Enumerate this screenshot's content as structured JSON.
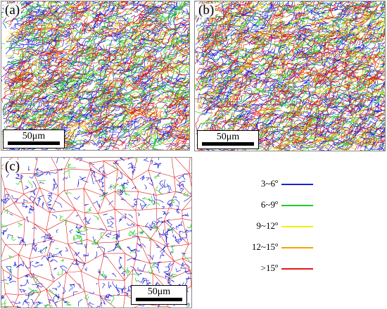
{
  "panels": [
    {
      "id": "a",
      "label": "(a)",
      "scale_text": "50μm"
    },
    {
      "id": "b",
      "label": "(b)",
      "scale_text": "50μm"
    },
    {
      "id": "c",
      "label": "(c)",
      "scale_text": "50μm"
    }
  ],
  "legend": {
    "items": [
      {
        "label": "3~6º",
        "color": "#1f1fd6"
      },
      {
        "label": "6~9º",
        "color": "#22cc22"
      },
      {
        "label": "9~12º",
        "color": "#f2f200"
      },
      {
        "label": "12~15º",
        "color": "#f5a300"
      },
      {
        "label": ">15º",
        "color": "#e21a1a"
      }
    ]
  }
}
